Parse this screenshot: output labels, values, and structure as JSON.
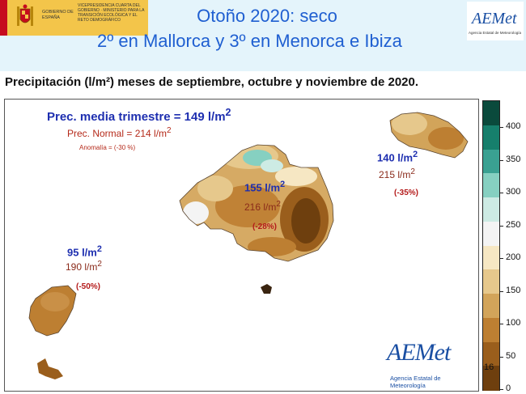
{
  "header": {
    "title_line1": "Otoño 2020: seco",
    "title_line2": "2º en Mallorca y 3º en Menorca e Ibiza",
    "gov_name": "GOBIERNO DE ESPAÑA",
    "ministry": "VICEPRESIDENCIA CUARTA DEL GOBIERNO · MINISTERIO PARA LA TRANSICIÓN ECOLÓGICA Y EL RETO DEMOGRÁFICO",
    "aemet_logo": "AEMet",
    "aemet_sub": "Agencia Estatal de Meteorología"
  },
  "subtitle": "Precipitación (l/m²) meses de septiembre, octubre y noviembre de 2020.",
  "summary": {
    "mean_prefix": "Prec. media trimestre = 149 l/m",
    "mean_sup": "2",
    "normal_prefix": "Prec. Normal = 214 l/m",
    "normal_sup": "2",
    "anomaly": "Anomalía = (-30 %)"
  },
  "islands": [
    {
      "name": "Mallorca",
      "observed": "155 l/m",
      "normal": "216 l/m",
      "sup": "2",
      "anomaly": "(-28%)"
    },
    {
      "name": "Menorca",
      "observed": "140 l/m",
      "normal": "215 l/m",
      "sup": "2",
      "anomaly": "(-35%)"
    },
    {
      "name": "Ibiza",
      "observed": "95 l/m",
      "normal": "190 l/m",
      "sup": "2",
      "anomaly": "(-50%)"
    }
  ],
  "legend": {
    "ticks": [
      "400",
      "350",
      "300",
      "250",
      "200",
      "150",
      "100",
      "50",
      "0"
    ],
    "colors": [
      "#0a4a3c",
      "#167f6c",
      "#3aa192",
      "#86d0c1",
      "#cdebe4",
      "#f4f4f4",
      "#f6e7c3",
      "#e6c88c",
      "#d2a45a",
      "#bd7f32",
      "#9a5e1c",
      "#6e3f0e"
    ]
  },
  "logo_bottom": {
    "word": "AEMet",
    "sub": "Agencia Estatal de Meteorología"
  },
  "page_number": "16"
}
